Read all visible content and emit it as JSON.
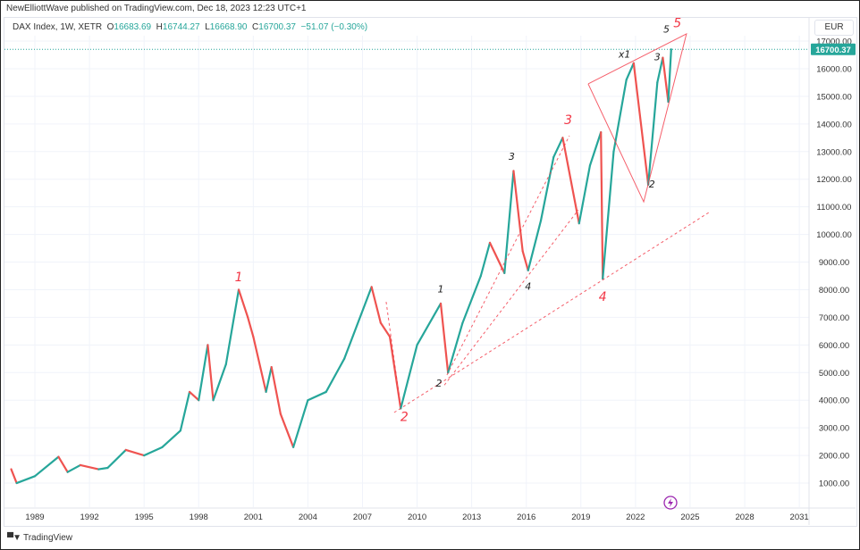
{
  "header": {
    "published": "NewElliottWave published on TradingView.com, Dec 18, 2023 12:23 UTC+1",
    "symbol": "DAX Index, 1W, XETR",
    "open_label": "O",
    "open": "16683.69",
    "high_label": "H",
    "high": "16744.27",
    "low_label": "L",
    "low": "16668.90",
    "close_label": "C",
    "close": "16700.37",
    "change": "−51.07 (−0.30%)"
  },
  "currency_button": "EUR",
  "brand": {
    "logo": "TV",
    "name": "TradingView"
  },
  "colors": {
    "up": "#26a69a",
    "down": "#ef5350",
    "annotation": "#f23645",
    "grid": "#f0f3fa"
  },
  "chart_data": {
    "type": "candlestick",
    "title": "DAX Index, 1W, XETR",
    "x_ticks": [
      "1989",
      "1992",
      "1995",
      "1998",
      "2001",
      "2004",
      "2007",
      "2010",
      "2013",
      "2016",
      "2019",
      "2022",
      "2025",
      "2028",
      "2031"
    ],
    "y_ticks": [
      "1000.00",
      "2000.00",
      "3000.00",
      "4000.00",
      "5000.00",
      "6000.00",
      "7000.00",
      "8000.00",
      "9000.00",
      "10000.00",
      "11000.00",
      "12000.00",
      "13000.00",
      "14000.00",
      "15000.00",
      "16000.00",
      "17000.00"
    ],
    "ylim": [
      500,
      17800
    ],
    "xlim": [
      1987.6,
      2033.1
    ],
    "grid": true,
    "last_price": 16700.37,
    "last_price_label": "16700.37",
    "series": [
      [
        1987.7,
        1500
      ],
      [
        1988.0,
        1000
      ],
      [
        1989.0,
        1250
      ],
      [
        1990.3,
        1950
      ],
      [
        1990.8,
        1400
      ],
      [
        1991.5,
        1650
      ],
      [
        1992.5,
        1500
      ],
      [
        1993.0,
        1550
      ],
      [
        1994.0,
        2200
      ],
      [
        1995.0,
        2000
      ],
      [
        1996.0,
        2300
      ],
      [
        1997.0,
        2900
      ],
      [
        1997.5,
        4300
      ],
      [
        1998.0,
        4000
      ],
      [
        1998.5,
        6000
      ],
      [
        1998.8,
        4000
      ],
      [
        1999.5,
        5300
      ],
      [
        2000.2,
        8000
      ],
      [
        2000.7,
        7000
      ],
      [
        2001.0,
        6300
      ],
      [
        2001.7,
        4300
      ],
      [
        2002.0,
        5200
      ],
      [
        2002.5,
        3500
      ],
      [
        2003.2,
        2300
      ],
      [
        2004.0,
        4000
      ],
      [
        2005.0,
        4300
      ],
      [
        2006.0,
        5500
      ],
      [
        2007.5,
        8100
      ],
      [
        2008.0,
        6800
      ],
      [
        2008.5,
        6300
      ],
      [
        2009.1,
        3700
      ],
      [
        2010.0,
        6000
      ],
      [
        2011.3,
        7500
      ],
      [
        2011.7,
        5000
      ],
      [
        2012.5,
        6800
      ],
      [
        2013.5,
        8500
      ],
      [
        2014.0,
        9700
      ],
      [
        2014.8,
        8600
      ],
      [
        2015.3,
        12300
      ],
      [
        2015.8,
        9400
      ],
      [
        2016.1,
        8700
      ],
      [
        2016.8,
        10500
      ],
      [
        2017.5,
        12800
      ],
      [
        2018.0,
        13500
      ],
      [
        2018.9,
        10400
      ],
      [
        2019.5,
        12500
      ],
      [
        2020.1,
        13700
      ],
      [
        2020.2,
        8400
      ],
      [
        2020.8,
        13000
      ],
      [
        2021.5,
        15600
      ],
      [
        2021.9,
        16200
      ],
      [
        2022.7,
        11800
      ],
      [
        2023.2,
        15500
      ],
      [
        2023.5,
        16400
      ],
      [
        2023.8,
        14800
      ],
      [
        2023.96,
        16700
      ]
    ],
    "wave_labels": [
      {
        "text": "1",
        "x": 2000.2,
        "y": 8300,
        "color": "red",
        "size": "large"
      },
      {
        "text": "2",
        "x": 2009.3,
        "y": 3250,
        "color": "red",
        "size": "large"
      },
      {
        "text": "3",
        "x": 2018.3,
        "y": 14000,
        "color": "red",
        "size": "large"
      },
      {
        "text": "4",
        "x": 2020.2,
        "y": 7600,
        "color": "red",
        "size": "large"
      },
      {
        "text": "5",
        "x": 2024.3,
        "y": 17500,
        "color": "red",
        "size": "large"
      },
      {
        "text": "1",
        "x": 2011.3,
        "y": 7900,
        "color": "black",
        "size": "small"
      },
      {
        "text": "2",
        "x": 2011.2,
        "y": 4500,
        "color": "black",
        "size": "small"
      },
      {
        "text": "3",
        "x": 2015.2,
        "y": 12700,
        "color": "black",
        "size": "small"
      },
      {
        "text": "4",
        "x": 2016.1,
        "y": 8000,
        "color": "black",
        "size": "small"
      },
      {
        "text": "x1",
        "x": 2021.4,
        "y": 16400,
        "color": "black",
        "size": "small"
      },
      {
        "text": "3",
        "x": 2023.2,
        "y": 16300,
        "color": "black",
        "size": "small"
      },
      {
        "text": "2",
        "x": 2022.9,
        "y": 11700,
        "color": "black",
        "size": "small"
      },
      {
        "text": "5",
        "x": 2023.7,
        "y": 17300,
        "color": "black",
        "size": "small"
      }
    ],
    "trendlines": [
      {
        "style": "dashed",
        "points": [
          [
            2008.74,
            3555
          ],
          [
            2026.03,
            10795
          ]
        ]
      },
      {
        "style": "dashed",
        "points": [
          [
            2011.5,
            4548
          ],
          [
            2018.86,
            10890
          ]
        ]
      },
      {
        "style": "dashed",
        "points": [
          [
            2011.64,
            4912
          ],
          [
            2018.37,
            13574
          ]
        ]
      },
      {
        "style": "dashed",
        "points": [
          [
            2008.3,
            7562
          ],
          [
            2009.09,
            3781
          ]
        ]
      },
      {
        "style": "solid",
        "points": [
          [
            2019.4,
            15450
          ],
          [
            2022.45,
            11180
          ],
          [
            2024.8,
            17260
          ],
          [
            2019.4,
            15450
          ]
        ]
      }
    ]
  }
}
